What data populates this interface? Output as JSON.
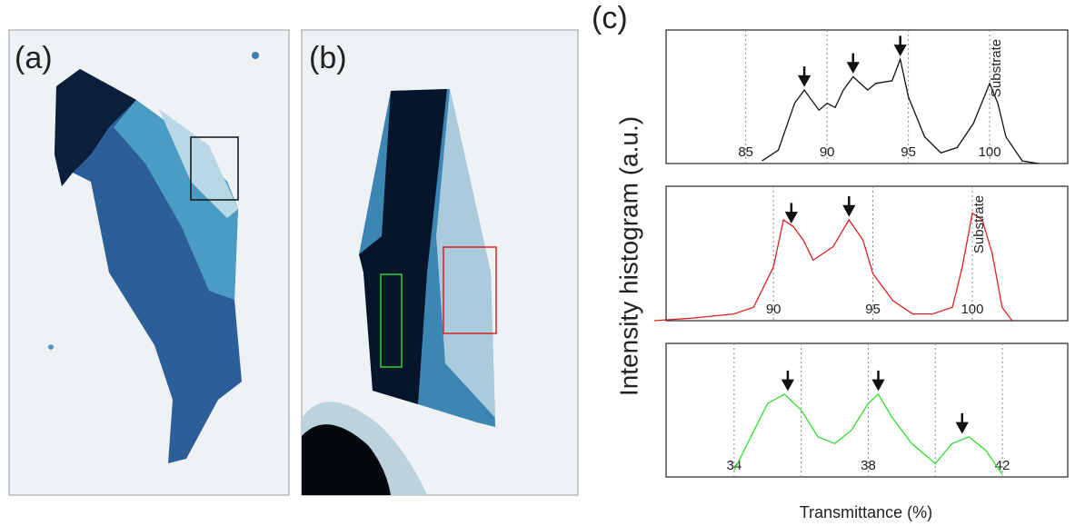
{
  "panels": {
    "a": "(a)",
    "b": "(b)",
    "c": "(c)"
  },
  "ylabel": "Intensity histogram (a.u.)",
  "xlabel": "Transmittance (%)",
  "chart_data": [
    {
      "type": "line",
      "color": "#111111",
      "xlim": [
        80.1,
        104.8
      ],
      "ylim": [
        0,
        1
      ],
      "xticks": [
        85,
        90,
        95,
        100
      ],
      "gridlines": [
        85,
        90,
        95,
        100
      ],
      "annotation": "Substrate",
      "arrows": [
        88.6,
        91.6,
        94.5
      ],
      "x": [
        86,
        87,
        88,
        88.6,
        89.5,
        90,
        90.5,
        91,
        91.6,
        92.5,
        93,
        94,
        94.5,
        95,
        96,
        97,
        98,
        99,
        100,
        100.5,
        101,
        102,
        103
      ],
      "values": [
        0.02,
        0.1,
        0.45,
        0.55,
        0.4,
        0.45,
        0.42,
        0.55,
        0.65,
        0.55,
        0.6,
        0.62,
        0.78,
        0.5,
        0.2,
        0.08,
        0.12,
        0.3,
        0.6,
        0.45,
        0.2,
        0.02,
        0
      ]
    },
    {
      "type": "line",
      "color": "#e02020",
      "xlim": [
        84.6,
        104.8
      ],
      "ylim": [
        0,
        1
      ],
      "xticks": [
        90,
        95,
        100
      ],
      "gridlines": [
        90,
        95,
        100
      ],
      "annotation": "Substrate",
      "arrows": [
        90.9,
        93.8
      ],
      "x": [
        84,
        86,
        88,
        89,
        90,
        90.5,
        91,
        91.5,
        92,
        93,
        93.8,
        94.5,
        95,
        96,
        97,
        98,
        99,
        99.5,
        100,
        100.5,
        101,
        101.5,
        102
      ],
      "values": [
        0,
        0.02,
        0.05,
        0.1,
        0.4,
        0.75,
        0.7,
        0.6,
        0.45,
        0.55,
        0.75,
        0.6,
        0.35,
        0.15,
        0.05,
        0.05,
        0.1,
        0.4,
        0.8,
        0.75,
        0.5,
        0.1,
        0
      ]
    },
    {
      "type": "line",
      "color": "#33dd33",
      "xlim": [
        31.97,
        43.95
      ],
      "ylim": [
        0,
        1
      ],
      "xticks": [
        34,
        38,
        42
      ],
      "gridlines": [
        34,
        36,
        38,
        40,
        42
      ],
      "arrows": [
        35.6,
        38.3,
        40.8
      ],
      "x": [
        34,
        34.5,
        35,
        35.5,
        36,
        36.5,
        37,
        37.5,
        38,
        38.3,
        38.7,
        39.3,
        40,
        40.5,
        41,
        41.5,
        42
      ],
      "values": [
        0.05,
        0.3,
        0.55,
        0.62,
        0.5,
        0.3,
        0.25,
        0.35,
        0.55,
        0.62,
        0.45,
        0.25,
        0.1,
        0.25,
        0.3,
        0.2,
        0.02
      ]
    }
  ]
}
